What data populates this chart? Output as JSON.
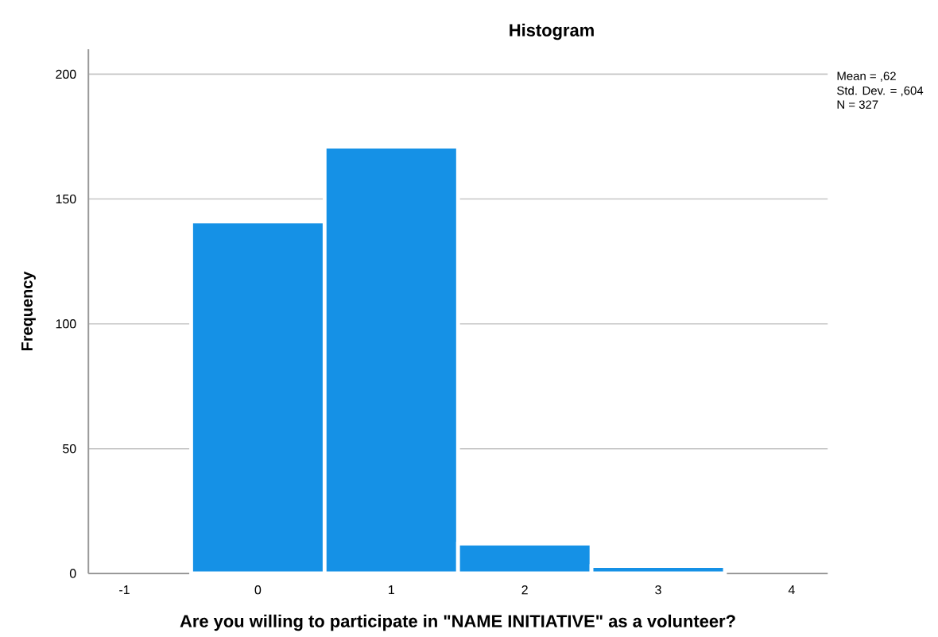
{
  "chart_data": {
    "type": "histogram",
    "title": "Histogram",
    "xlabel": "Are you willing to participate in \"NAME INITIATIVE\" as a volunteer?",
    "ylabel": "Frequency",
    "bins": [
      -0.5,
      0.5,
      1.5,
      2.5,
      3.5
    ],
    "values": [
      141,
      171,
      12,
      3
    ],
    "color": "#1591e6",
    "xlim": [
      -1.27,
      4.27
    ],
    "ylim": [
      0,
      210
    ],
    "xticks": [
      -1,
      0,
      1,
      2,
      3,
      4
    ],
    "yticks": [
      0,
      50,
      100,
      150,
      200
    ],
    "grid": "y",
    "annotations": [
      "Mean = ,62",
      "Std. Dev. = ,604",
      "N = 327"
    ]
  }
}
